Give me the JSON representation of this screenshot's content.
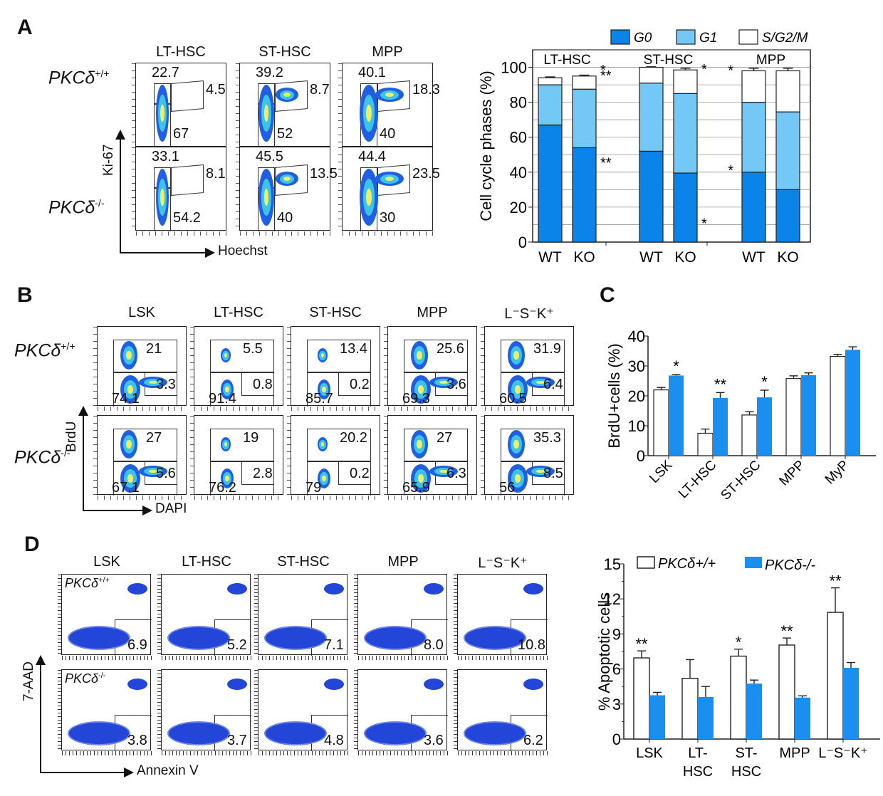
{
  "panels": {
    "A": {
      "letter": "A",
      "flow": {
        "columns": [
          "LT-HSC",
          "ST-HSC",
          "MPP"
        ],
        "rows": [
          {
            "label": "PKCδ",
            "sup": "+/+",
            "values": [
              {
                "g1_top": "22.7",
                "s": "4.5",
                "g0": "67"
              },
              {
                "g1_top": "39.2",
                "s": "8.7",
                "g0": "52"
              },
              {
                "g1_top": "40.1",
                "s": "18.3",
                "g0": "40"
              }
            ]
          },
          {
            "label": "PKCδ",
            "sup": "-/-",
            "values": [
              {
                "g1_top": "33.1",
                "s": "8.1",
                "g0": "54.2"
              },
              {
                "g1_top": "45.5",
                "s": "13.5",
                "g0": "40"
              },
              {
                "g1_top": "44.4",
                "s": "23.5",
                "g0": "30"
              }
            ]
          }
        ],
        "y_axis": "Ki-67",
        "x_axis": "Hoechst"
      }
    },
    "B": {
      "letter": "B",
      "flow": {
        "columns": [
          "LSK",
          "LT-HSC",
          "ST-HSC",
          "MPP",
          "L-S-K+"
        ],
        "rows": [
          {
            "label": "PKCδ",
            "sup": "+/+",
            "values": [
              {
                "top": "21",
                "bl": "74.1",
                "br": "3.3"
              },
              {
                "top": "5.5",
                "bl": "91.4",
                "br": "0.8"
              },
              {
                "top": "13.4",
                "bl": "85.7",
                "br": "0.2"
              },
              {
                "top": "25.6",
                "bl": "69.3",
                "br": "3.6"
              },
              {
                "top": "31.9",
                "bl": "60.5",
                "br": "6.4"
              }
            ]
          },
          {
            "label": "PKCδ",
            "sup": "-/-",
            "values": [
              {
                "top": "27",
                "bl": "67.1",
                "br": "5.6"
              },
              {
                "top": "19",
                "bl": "76.2",
                "br": "2.8"
              },
              {
                "top": "20.2",
                "bl": "79",
                "br": "0.2"
              },
              {
                "top": "27",
                "bl": "65.9",
                "br": "6.3"
              },
              {
                "top": "35.3",
                "bl": "56",
                "br": "8.5"
              }
            ]
          }
        ],
        "y_axis": "BrdU",
        "x_axis": "DAPI"
      }
    },
    "C": {
      "letter": "C"
    },
    "D": {
      "letter": "D",
      "flow": {
        "columns": [
          "LSK",
          "LT-HSC",
          "ST-HSC",
          "MPP",
          "L-S-K+"
        ],
        "rows": [
          {
            "label": "PKCδ",
            "sup": "+/+",
            "values": [
              "6.9",
              "5.2",
              "7.1",
              "8.0",
              "10.8"
            ]
          },
          {
            "label": "PKCδ",
            "sup": "-/-",
            "values": [
              "3.8",
              "3.7",
              "4.8",
              "3.6",
              "6.2"
            ]
          }
        ],
        "y_axis": "7-AAD",
        "x_axis": "Annexin V"
      }
    }
  },
  "colors": {
    "g0": "#0a84e8",
    "g1": "#74c8f5",
    "s": "#ffffff",
    "ko": "#1a8ff0",
    "wt": "#ffffff"
  },
  "chart_data": [
    {
      "id": "A-stacked",
      "type": "bar",
      "stacked": true,
      "title": "",
      "ylabel": "Cell cycle phases (%)",
      "ylim": [
        0,
        110
      ],
      "yticks": [
        0,
        20,
        40,
        60,
        80,
        100
      ],
      "groups": [
        "LT-HSC",
        "ST-HSC",
        "MPP"
      ],
      "categories": [
        "WT",
        "KO",
        "WT",
        "KO",
        "WT",
        "KO"
      ],
      "legend": [
        "G0",
        "G1",
        "S/G2/M"
      ],
      "legend_position": "top",
      "grid": true,
      "series": [
        {
          "name": "G0",
          "values": [
            67,
            54,
            52,
            39.5,
            40,
            30
          ],
          "errors": [
            2.5,
            3.5,
            3,
            5,
            2,
            4
          ]
        },
        {
          "name": "G1",
          "values": [
            23,
            33.5,
            39,
            45.5,
            40,
            44.5
          ],
          "errors": [
            2,
            3.5,
            3,
            5,
            2,
            4
          ]
        },
        {
          "name": "S/G2/M",
          "values": [
            4,
            7.5,
            9,
            13.5,
            18,
            23.5
          ],
          "errors": [
            0.5,
            0.5,
            0.3,
            1,
            1.5,
            1.5
          ]
        }
      ],
      "annotations": [
        {
          "bar": 1,
          "series": "S/G2/M",
          "text": "**"
        },
        {
          "bar": 1,
          "series": "G1",
          "text": "*"
        },
        {
          "bar": 1,
          "series": "G0",
          "text": "**"
        },
        {
          "bar": 3,
          "series": "S/G2/M",
          "text": "*"
        },
        {
          "bar": 3,
          "series": "G0",
          "text": "*"
        },
        {
          "bar": 4,
          "series": "S/G2/M",
          "text": "*"
        },
        {
          "bar": 4,
          "series": "G0",
          "text": "*"
        }
      ]
    },
    {
      "id": "C-brdu",
      "type": "bar",
      "ylabel": "BrdU+cells (%)",
      "ylim": [
        0,
        40
      ],
      "yticks": [
        0,
        10,
        20,
        30,
        40
      ],
      "categories": [
        "LSK",
        "LT-HSC",
        "ST-HSC",
        "MPP",
        "MyP"
      ],
      "series": [
        {
          "name": "PKCδ+/+",
          "values": [
            22,
            7.5,
            13.6,
            25.8,
            33.2
          ],
          "errors": [
            0.8,
            1.4,
            1.1,
            0.9,
            0.7
          ]
        },
        {
          "name": "PKCδ-/-",
          "values": [
            26.8,
            19.3,
            19.5,
            26.9,
            35.4
          ],
          "errors": [
            0.3,
            1.8,
            2.4,
            0.8,
            1.0
          ]
        }
      ],
      "significance": [
        "*",
        "**",
        "*",
        "",
        ""
      ]
    },
    {
      "id": "D-apoptosis",
      "type": "bar",
      "ylabel": "% Apoptotic cells",
      "ylim": [
        0,
        15
      ],
      "yticks": [
        0,
        3,
        6,
        9,
        12,
        15
      ],
      "categories": [
        "LSK",
        "LT-\nHSC",
        "ST-\nHSC",
        "MPP",
        "L-S-K+"
      ],
      "legend": [
        "PKCδ+/+",
        "PKCδ-/-"
      ],
      "legend_position": "top",
      "series": [
        {
          "name": "PKCδ+/+",
          "values": [
            6.95,
            5.2,
            7.1,
            8.05,
            10.85
          ],
          "errors": [
            0.6,
            1.6,
            0.6,
            0.6,
            2.1
          ]
        },
        {
          "name": "PKCδ-/-",
          "values": [
            3.75,
            3.6,
            4.75,
            3.55,
            6.1
          ],
          "errors": [
            0.25,
            0.9,
            0.3,
            0.15,
            0.45
          ]
        }
      ],
      "significance": [
        "**",
        "",
        "*",
        "**",
        "**"
      ]
    }
  ]
}
